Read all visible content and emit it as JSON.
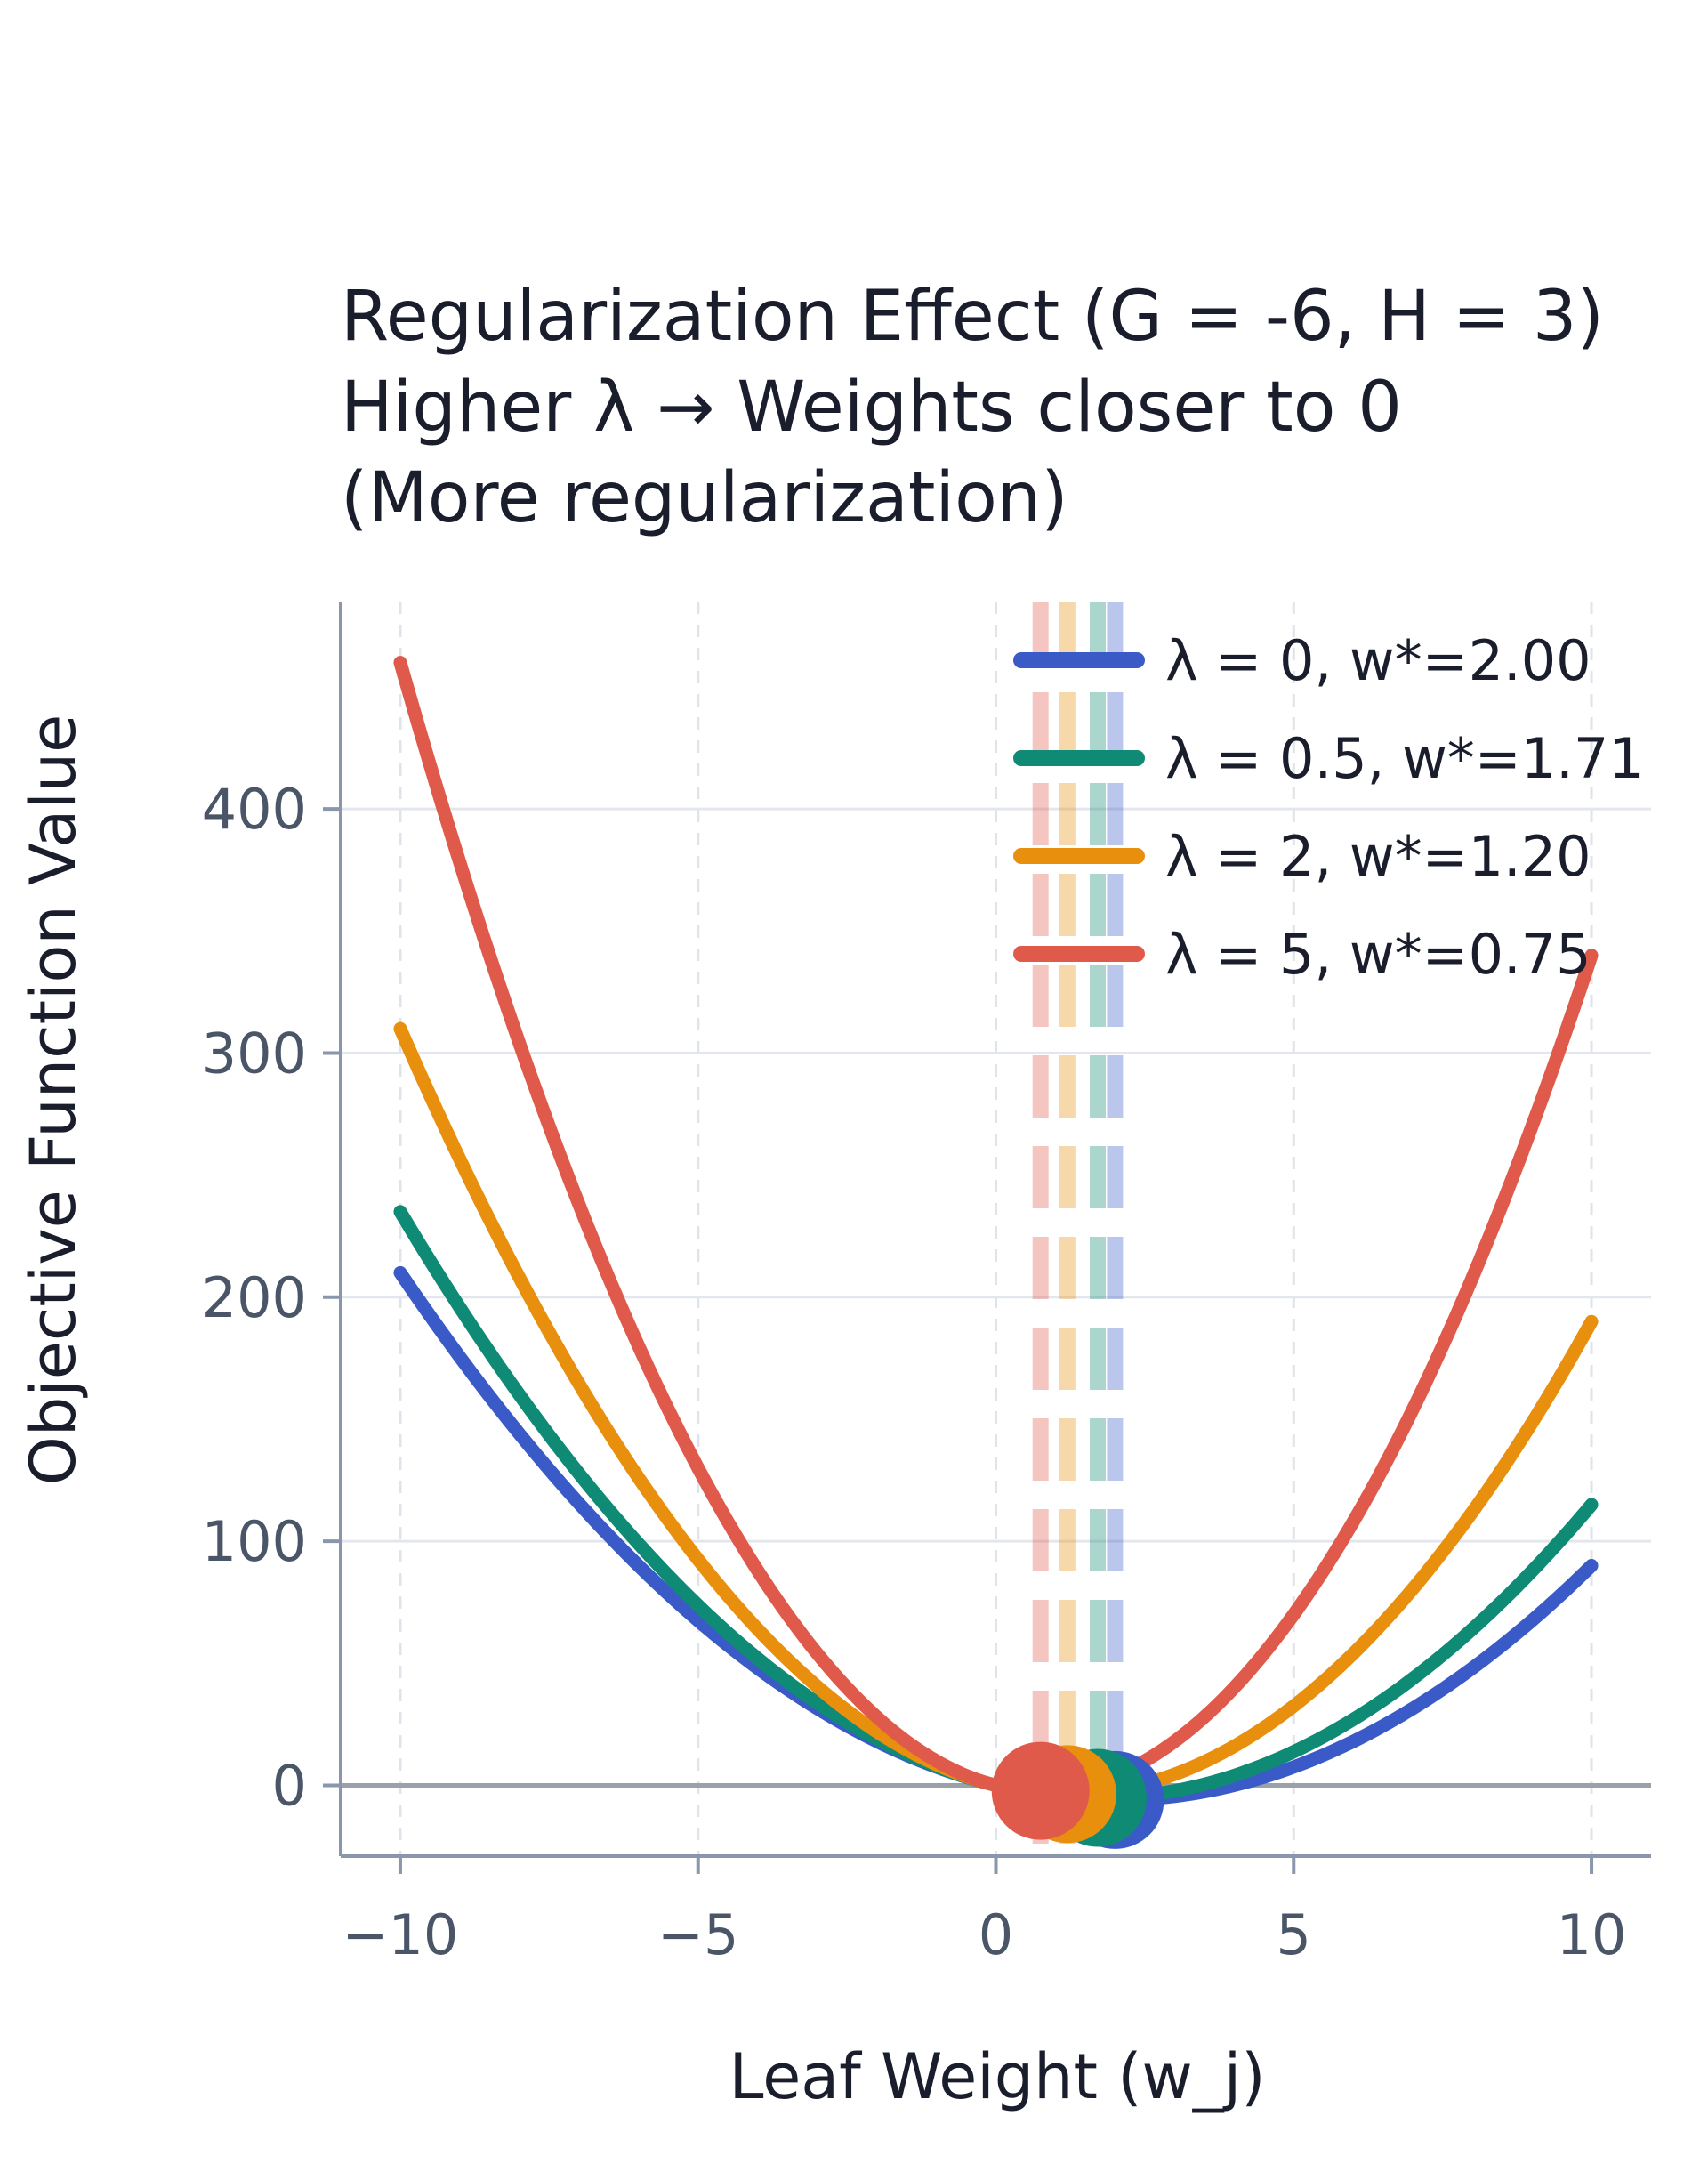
{
  "chart_data": {
    "type": "line",
    "title_lines": [
      "Regularization Effect (G = -6, H = 3)",
      "Higher λ → Weights closer to 0",
      "(More regularization)"
    ],
    "xlabel": "Leaf Weight (w_j)",
    "ylabel": "Objective Function Value",
    "xlim": [
      -11,
      11
    ],
    "ylim": [
      -29,
      485
    ],
    "xticks": [
      -10,
      -5,
      0,
      5,
      10
    ],
    "xtick_labels": [
      "−10",
      "−5",
      "0",
      "5",
      "10"
    ],
    "yticks": [
      0,
      100,
      200,
      300,
      400
    ],
    "ytick_labels": [
      "0",
      "100",
      "200",
      "300",
      "400"
    ],
    "x_range": [
      -10,
      10
    ],
    "G": -6,
    "H": 3,
    "grid": true,
    "legend_position": "top-right",
    "series": [
      {
        "name": "λ = 0, w*=2.00",
        "lambda": 0,
        "optimum_w": 2.0,
        "optimum_value": -6.0,
        "color": "#3a5bc7"
      },
      {
        "name": "λ = 0.5, w*=1.71",
        "lambda": 0.5,
        "optimum_w": 1.71,
        "optimum_value": -5.14,
        "color": "#0f8a74"
      },
      {
        "name": "λ = 2, w*=1.20",
        "lambda": 2,
        "optimum_w": 1.2,
        "optimum_value": -3.6,
        "color": "#e8900e"
      },
      {
        "name": "λ = 5, w*=0.75",
        "lambda": 5,
        "optimum_w": 0.75,
        "optimum_value": -2.25,
        "color": "#e05a4c"
      }
    ]
  }
}
